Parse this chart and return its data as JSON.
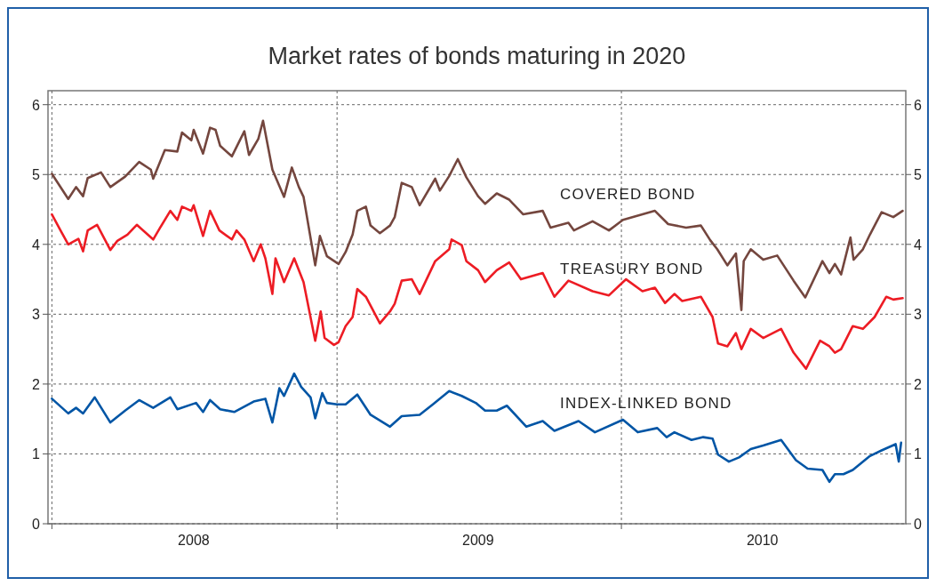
{
  "chart_data": {
    "type": "line",
    "title": "Market rates of bonds maturing in 2020",
    "xlim": [
      "2007-12-27",
      "2011-01-01"
    ],
    "xticks": [
      {
        "value": "2008-01-01",
        "label": null
      },
      {
        "value": "2008-07-01",
        "label": "2008"
      },
      {
        "value": "2009-01-01",
        "label": null
      },
      {
        "value": "2009-07-01",
        "label": "2009"
      },
      {
        "value": "2010-01-01",
        "label": null
      },
      {
        "value": "2010-07-01",
        "label": "2010"
      }
    ],
    "ylim": [
      0,
      6.2
    ],
    "yticks": [
      0,
      1,
      2,
      3,
      4,
      5,
      6
    ],
    "y2lim": [
      0,
      6.2
    ],
    "y2ticks": [
      0,
      1,
      2,
      3,
      4,
      5,
      6
    ],
    "grid": true,
    "line_style": "solid",
    "series": [
      {
        "name": "COVERED BOND",
        "color": "#74463e",
        "x": [
          "2008-01-01",
          "2008-01-22",
          "2008-02-01",
          "2008-02-10",
          "2008-02-16",
          "2008-03-04",
          "2008-03-16",
          "2008-04-04",
          "2008-04-22",
          "2008-05-07",
          "2008-05-10",
          "2008-05-25",
          "2008-06-10",
          "2008-06-16",
          "2008-06-28",
          "2008-07-01",
          "2008-07-13",
          "2008-07-22",
          "2008-07-29",
          "2008-08-04",
          "2008-08-19",
          "2008-09-04",
          "2008-09-10",
          "2008-09-22",
          "2008-09-28",
          "2008-10-10",
          "2008-10-25",
          "2008-11-04",
          "2008-11-13",
          "2008-11-19",
          "2008-12-04",
          "2008-12-10",
          "2008-12-19",
          "2009-01-03",
          "2009-01-12",
          "2009-01-21",
          "2009-01-27",
          "2009-02-07",
          "2009-02-13",
          "2009-02-25",
          "2009-03-10",
          "2009-03-16",
          "2009-03-25",
          "2009-04-07",
          "2009-04-17",
          "2009-05-07",
          "2009-05-13",
          "2009-05-25",
          "2009-06-05",
          "2009-06-16",
          "2009-07-01",
          "2009-07-10",
          "2009-07-25",
          "2009-08-10",
          "2009-08-28",
          "2009-09-22",
          "2009-10-02",
          "2009-10-25",
          "2009-11-01",
          "2009-11-25",
          "2009-12-16",
          "2010-01-03",
          "2010-02-13",
          "2010-03-02",
          "2010-03-25",
          "2010-04-13",
          "2010-04-25",
          "2010-05-04",
          "2010-05-17",
          "2010-05-28",
          "2010-06-04",
          "2010-06-07",
          "2010-06-16",
          "2010-07-02",
          "2010-07-20",
          "2010-08-10",
          "2010-08-25",
          "2010-09-16",
          "2010-09-25",
          "2010-10-02",
          "2010-10-10",
          "2010-10-22",
          "2010-10-26",
          "2010-11-07",
          "2010-11-16",
          "2010-12-01",
          "2010-12-16",
          "2010-12-28"
        ],
        "values": [
          5.01,
          4.65,
          4.82,
          4.69,
          4.95,
          5.03,
          4.82,
          4.97,
          5.18,
          5.07,
          4.94,
          5.35,
          5.33,
          5.6,
          5.49,
          5.64,
          5.3,
          5.67,
          5.64,
          5.41,
          5.26,
          5.62,
          5.28,
          5.51,
          5.77,
          5.07,
          4.68,
          5.1,
          4.82,
          4.68,
          3.7,
          4.12,
          3.83,
          3.72,
          3.89,
          4.14,
          4.48,
          4.54,
          4.27,
          4.16,
          4.27,
          4.39,
          4.88,
          4.82,
          4.56,
          4.94,
          4.77,
          4.98,
          5.22,
          4.96,
          4.69,
          4.58,
          4.73,
          4.64,
          4.43,
          4.48,
          4.24,
          4.31,
          4.2,
          4.33,
          4.2,
          4.35,
          4.48,
          4.29,
          4.24,
          4.27,
          4.06,
          3.93,
          3.7,
          3.87,
          3.06,
          3.76,
          3.93,
          3.78,
          3.84,
          3.48,
          3.24,
          3.76,
          3.59,
          3.72,
          3.57,
          4.1,
          3.78,
          3.93,
          4.14,
          4.46,
          4.39,
          4.48
        ]
      },
      {
        "name": "TREASURY BOND",
        "color": "#ed1c24",
        "x": [
          "2008-01-01",
          "2008-01-13",
          "2008-01-22",
          "2008-02-04",
          "2008-02-10",
          "2008-02-16",
          "2008-02-28",
          "2008-03-16",
          "2008-03-25",
          "2008-04-07",
          "2008-04-19",
          "2008-05-10",
          "2008-05-19",
          "2008-06-01",
          "2008-06-10",
          "2008-06-16",
          "2008-06-28",
          "2008-07-01",
          "2008-07-13",
          "2008-07-22",
          "2008-08-03",
          "2008-08-19",
          "2008-08-25",
          "2008-09-04",
          "2008-09-16",
          "2008-09-25",
          "2008-10-01",
          "2008-10-10",
          "2008-10-14",
          "2008-10-25",
          "2008-11-07",
          "2008-11-19",
          "2008-12-04",
          "2008-12-11",
          "2008-12-16",
          "2008-12-28",
          "2009-01-03",
          "2009-01-12",
          "2009-01-21",
          "2009-01-27",
          "2009-02-07",
          "2009-02-25",
          "2009-03-10",
          "2009-03-16",
          "2009-03-25",
          "2009-04-07",
          "2009-04-17",
          "2009-05-07",
          "2009-05-25",
          "2009-05-28",
          "2009-06-10",
          "2009-06-16",
          "2009-07-01",
          "2009-07-10",
          "2009-07-25",
          "2009-08-10",
          "2009-08-25",
          "2009-09-22",
          "2009-10-07",
          "2009-10-25",
          "2009-11-25",
          "2009-12-16",
          "2010-01-03",
          "2010-01-07",
          "2010-01-28",
          "2010-02-13",
          "2010-02-26",
          "2010-03-10",
          "2010-03-20",
          "2010-04-13",
          "2010-04-28",
          "2010-05-05",
          "2010-05-17",
          "2010-05-28",
          "2010-06-04",
          "2010-06-16",
          "2010-07-02",
          "2010-07-25",
          "2010-08-10",
          "2010-08-26",
          "2010-09-13",
          "2010-09-25",
          "2010-10-02",
          "2010-10-10",
          "2010-10-25",
          "2010-11-07",
          "2010-11-22",
          "2010-12-07",
          "2010-12-16",
          "2010-12-28"
        ],
        "values": [
          4.43,
          4.18,
          4.0,
          4.08,
          3.9,
          4.2,
          4.28,
          3.92,
          4.05,
          4.14,
          4.28,
          4.07,
          4.24,
          4.48,
          4.35,
          4.54,
          4.48,
          4.56,
          4.12,
          4.48,
          4.2,
          4.07,
          4.2,
          4.07,
          3.76,
          4.0,
          3.8,
          3.29,
          3.8,
          3.46,
          3.8,
          3.46,
          2.62,
          3.04,
          2.66,
          2.56,
          2.6,
          2.83,
          2.96,
          3.36,
          3.25,
          2.87,
          3.04,
          3.15,
          3.48,
          3.5,
          3.29,
          3.76,
          3.93,
          4.07,
          3.99,
          3.76,
          3.63,
          3.46,
          3.63,
          3.74,
          3.5,
          3.59,
          3.25,
          3.48,
          3.33,
          3.27,
          3.46,
          3.5,
          3.33,
          3.38,
          3.16,
          3.29,
          3.19,
          3.25,
          2.96,
          2.58,
          2.54,
          2.73,
          2.5,
          2.79,
          2.66,
          2.79,
          2.45,
          2.22,
          2.62,
          2.54,
          2.45,
          2.5,
          2.83,
          2.79,
          2.96,
          3.25,
          3.21,
          3.23
        ]
      },
      {
        "name": "INDEX-LINKED BOND",
        "color": "#0055a5",
        "x": [
          "2008-01-01",
          "2008-01-22",
          "2008-02-01",
          "2008-02-10",
          "2008-02-25",
          "2008-03-16",
          "2008-04-04",
          "2008-04-22",
          "2008-05-10",
          "2008-06-01",
          "2008-06-10",
          "2008-07-04",
          "2008-07-13",
          "2008-07-22",
          "2008-08-04",
          "2008-08-22",
          "2008-09-16",
          "2008-10-01",
          "2008-10-10",
          "2008-10-19",
          "2008-10-25",
          "2008-11-07",
          "2008-11-16",
          "2008-11-28",
          "2008-12-04",
          "2008-12-13",
          "2008-12-19",
          "2009-01-01",
          "2009-01-12",
          "2009-01-27",
          "2009-02-13",
          "2009-03-10",
          "2009-03-25",
          "2009-04-17",
          "2009-05-04",
          "2009-05-25",
          "2009-06-10",
          "2009-06-28",
          "2009-07-10",
          "2009-07-25",
          "2009-08-07",
          "2009-09-01",
          "2009-09-22",
          "2009-10-07",
          "2009-11-07",
          "2009-11-28",
          "2010-01-03",
          "2010-01-22",
          "2010-02-16",
          "2010-02-28",
          "2010-03-10",
          "2010-04-01",
          "2010-04-16",
          "2010-04-28",
          "2010-05-05",
          "2010-05-19",
          "2010-06-01",
          "2010-06-16",
          "2010-07-02",
          "2010-07-25",
          "2010-08-13",
          "2010-08-28",
          "2010-09-16",
          "2010-09-25",
          "2010-10-02",
          "2010-10-13",
          "2010-10-25",
          "2010-11-16",
          "2010-12-01",
          "2010-12-19",
          "2010-12-23",
          "2010-12-26"
        ],
        "values": [
          1.79,
          1.58,
          1.66,
          1.58,
          1.81,
          1.45,
          1.62,
          1.77,
          1.66,
          1.81,
          1.64,
          1.73,
          1.6,
          1.77,
          1.64,
          1.6,
          1.75,
          1.79,
          1.45,
          1.94,
          1.83,
          2.15,
          1.96,
          1.81,
          1.51,
          1.87,
          1.73,
          1.71,
          1.71,
          1.85,
          1.56,
          1.39,
          1.54,
          1.56,
          1.71,
          1.9,
          1.83,
          1.73,
          1.62,
          1.62,
          1.69,
          1.39,
          1.47,
          1.33,
          1.47,
          1.31,
          1.49,
          1.31,
          1.37,
          1.24,
          1.31,
          1.2,
          1.24,
          1.22,
          0.99,
          0.89,
          0.95,
          1.07,
          1.12,
          1.2,
          0.91,
          0.79,
          0.77,
          0.6,
          0.71,
          0.71,
          0.77,
          0.97,
          1.05,
          1.14,
          0.89,
          1.16
        ]
      }
    ]
  }
}
